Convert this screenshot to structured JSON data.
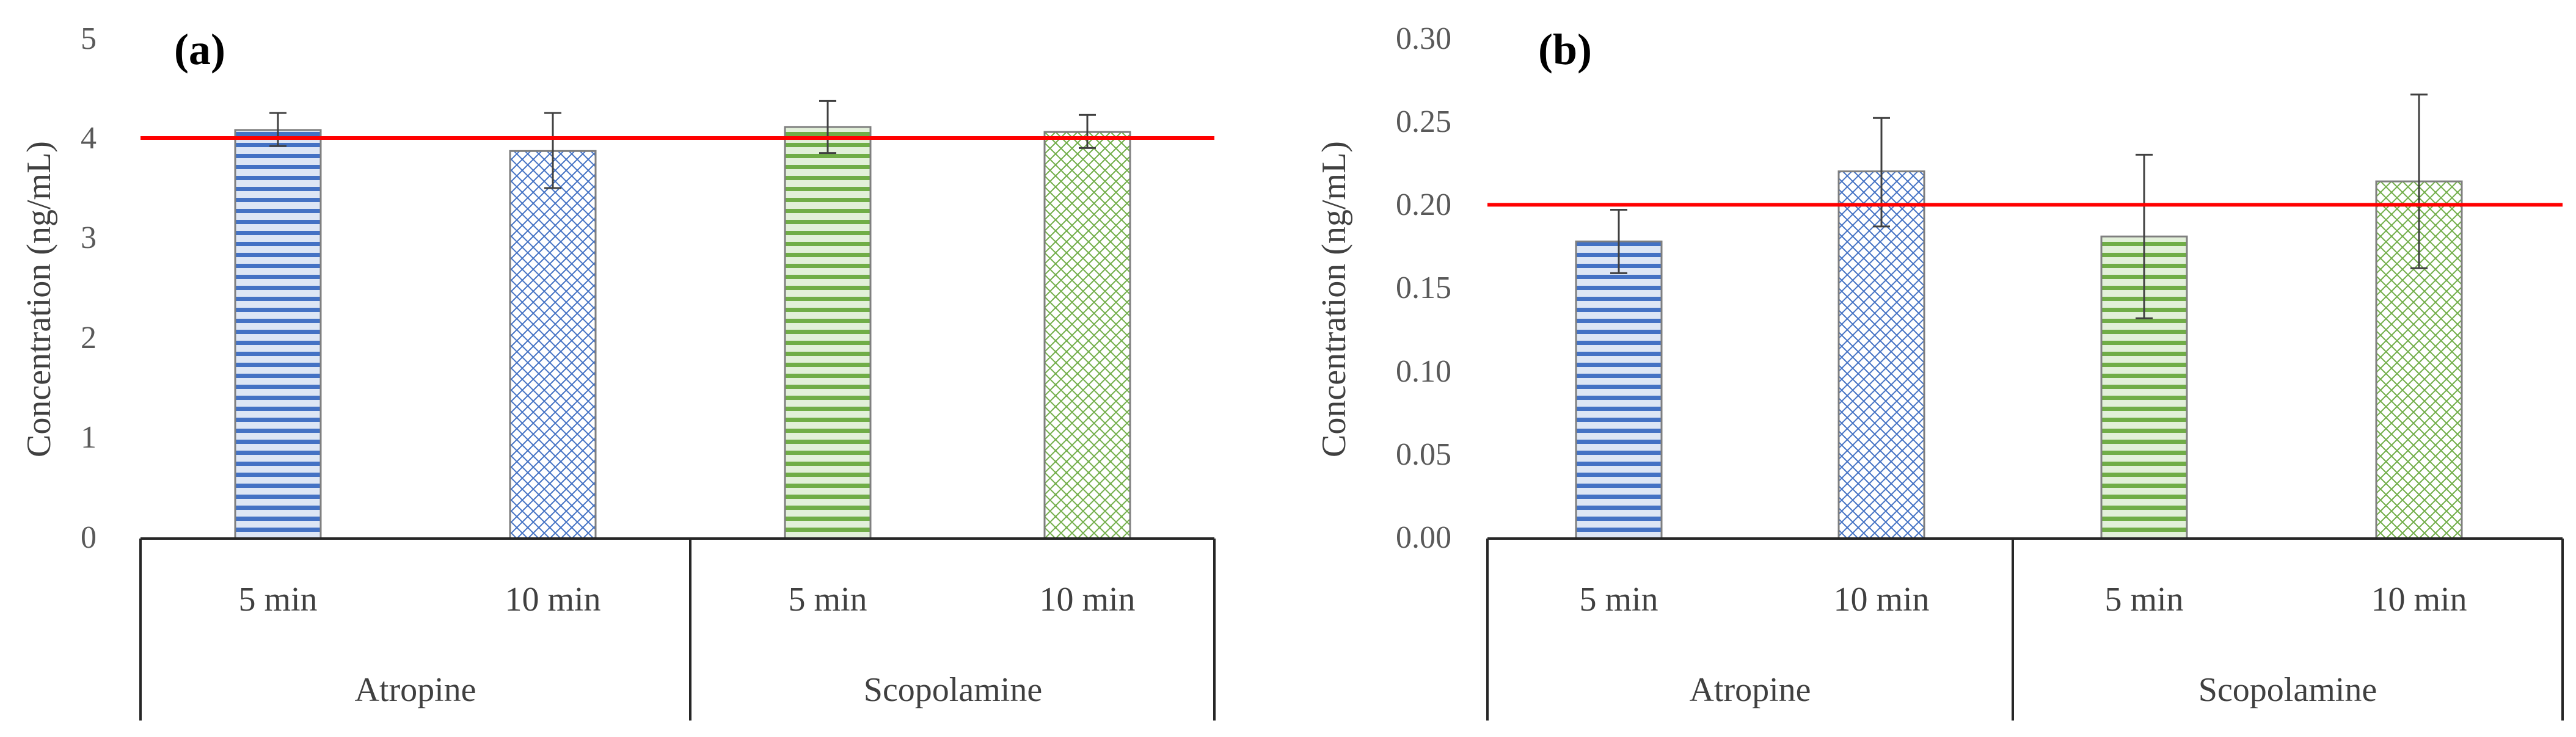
{
  "chart_data": [
    {
      "panel": "(a)",
      "type": "bar",
      "ylabel": "Concentration (ng/mL)",
      "ylim": [
        0,
        5
      ],
      "yticks": [
        "0",
        "1",
        "2",
        "3",
        "4",
        "5"
      ],
      "groups": [
        {
          "name": "Atropine",
          "categories": [
            "5 min",
            "10 min"
          ]
        },
        {
          "name": "Scopolamine",
          "categories": [
            "5 min",
            "10 min"
          ]
        }
      ],
      "bars": [
        {
          "group": "Atropine",
          "category": "5 min",
          "value": 4.08,
          "err_low": 3.92,
          "err_high": 4.25,
          "color": "#4472c4",
          "pattern": "stripes"
        },
        {
          "group": "Atropine",
          "category": "10 min",
          "value": 3.87,
          "err_low": 3.5,
          "err_high": 4.25,
          "color": "#4472c4",
          "pattern": "crosshatch"
        },
        {
          "group": "Scopolamine",
          "category": "5 min",
          "value": 4.11,
          "err_low": 3.85,
          "err_high": 4.37,
          "color": "#70ad47",
          "pattern": "stripes"
        },
        {
          "group": "Scopolamine",
          "category": "10 min",
          "value": 4.06,
          "err_low": 3.9,
          "err_high": 4.23,
          "color": "#70ad47",
          "pattern": "crosshatch"
        }
      ],
      "reference_line": {
        "value": 4.0,
        "color": "#ff0000"
      }
    },
    {
      "panel": "(b)",
      "type": "bar",
      "ylabel": "Concentration (ng/mL)",
      "ylim": [
        0,
        0.3
      ],
      "yticks": [
        "0.00",
        "0.05",
        "0.10",
        "0.15",
        "0.20",
        "0.25",
        "0.30"
      ],
      "groups": [
        {
          "name": "Atropine",
          "categories": [
            "5 min",
            "10 min"
          ]
        },
        {
          "name": "Scopolamine",
          "categories": [
            "5 min",
            "10 min"
          ]
        }
      ],
      "bars": [
        {
          "group": "Atropine",
          "category": "5 min",
          "value": 0.178,
          "err_low": 0.159,
          "err_high": 0.197,
          "color": "#4472c4",
          "pattern": "stripes"
        },
        {
          "group": "Atropine",
          "category": "10 min",
          "value": 0.22,
          "err_low": 0.187,
          "err_high": 0.252,
          "color": "#4472c4",
          "pattern": "crosshatch"
        },
        {
          "group": "Scopolamine",
          "category": "5 min",
          "value": 0.181,
          "err_low": 0.132,
          "err_high": 0.23,
          "color": "#70ad47",
          "pattern": "stripes"
        },
        {
          "group": "Scopolamine",
          "category": "10 min",
          "value": 0.214,
          "err_low": 0.162,
          "err_high": 0.266,
          "color": "#70ad47",
          "pattern": "crosshatch"
        }
      ],
      "reference_line": {
        "value": 0.2,
        "color": "#ff0000"
      }
    }
  ]
}
